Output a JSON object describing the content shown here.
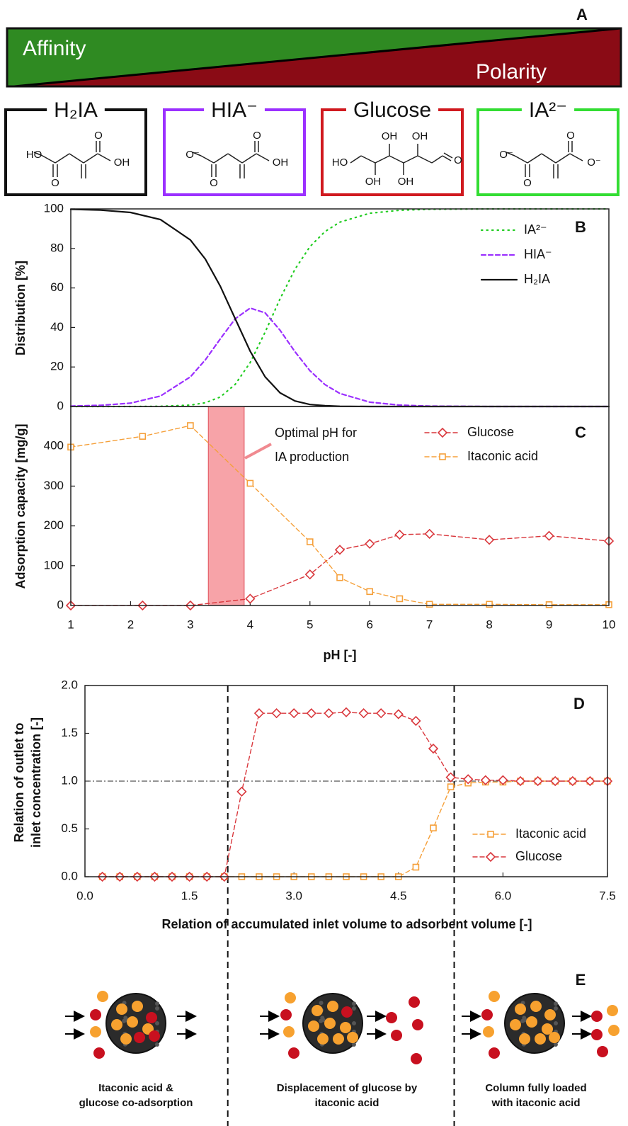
{
  "panel_a": {
    "label": "A",
    "gradient": [
      "Affinity",
      "Polarity"
    ],
    "species": [
      {
        "name": "H₂IA",
        "color": "#111111",
        "atoms": [
          "HO",
          "O",
          "O",
          "OH"
        ]
      },
      {
        "name": "HIA⁻",
        "color": "#9b30ff",
        "atoms": [
          "O⁻",
          "O",
          "O",
          "OH"
        ]
      },
      {
        "name": "Glucose",
        "color": "#d0191f",
        "atoms": [
          "HO",
          "OH",
          "OH",
          "OH",
          "OH",
          "O"
        ]
      },
      {
        "name": "IA²⁻",
        "color": "#33dd33",
        "atoms": [
          "O⁻",
          "O",
          "O",
          "O⁻"
        ]
      }
    ]
  },
  "chart_data": [
    {
      "type": "line",
      "label": "B",
      "ylabel": "Distribution [%]",
      "x": [
        1,
        1.5,
        2,
        2.5,
        3,
        3.25,
        3.5,
        3.75,
        4,
        4.25,
        4.5,
        4.75,
        5,
        5.25,
        5.5,
        6,
        6.5,
        7,
        8,
        9,
        10
      ],
      "series": [
        {
          "name": "IA²⁻",
          "color": "#22cc22",
          "style": "dotted",
          "values": [
            0,
            0,
            0,
            0.1,
            0.7,
            1.9,
            4.8,
            11.2,
            22.2,
            37.6,
            54.5,
            69.5,
            80.9,
            88.5,
            93.3,
            97.8,
            99.3,
            99.8,
            100,
            100,
            100
          ]
        },
        {
          "name": "HIA⁻",
          "color": "#9b30ff",
          "style": "dashed",
          "values": [
            0.2,
            0.6,
            1.7,
            5.3,
            15.0,
            23.6,
            34.2,
            44.4,
            49.8,
            47.4,
            38.6,
            27.7,
            18.1,
            11.1,
            6.6,
            2.2,
            0.7,
            0.2,
            0,
            0,
            0
          ]
        },
        {
          "name": "H₂IA",
          "color": "#111111",
          "style": "solid",
          "values": [
            99.8,
            99.4,
            98.2,
            94.6,
            84.3,
            74.6,
            60.9,
            44.4,
            28.0,
            15.0,
            6.9,
            2.8,
            1.0,
            0.4,
            0.1,
            0,
            0,
            0,
            0,
            0,
            0
          ]
        }
      ],
      "xlim": [
        1,
        10
      ],
      "ylim": [
        0,
        100
      ],
      "yticks": [
        0,
        20,
        40,
        60,
        80,
        100
      ],
      "legend": "upper right"
    },
    {
      "type": "line",
      "label": "C",
      "ylabel": "Adsorption capacity [mg/g]",
      "xlabel": "pH [-]",
      "x": [
        1,
        2.2,
        3,
        4,
        5,
        5.5,
        6,
        6.5,
        7,
        8,
        9,
        10
      ],
      "series": [
        {
          "name": "Glucose",
          "color": "#d9373c",
          "style": "dashed",
          "marker": "diamond",
          "values": [
            0,
            0,
            0,
            17,
            78,
            140,
            155,
            178,
            180,
            165,
            175,
            162
          ]
        },
        {
          "name": "Itaconic acid",
          "color": "#f5a03a",
          "style": "dashed",
          "marker": "square",
          "values": [
            398,
            425,
            452,
            307,
            160,
            70,
            35,
            17,
            3,
            3,
            2,
            2
          ]
        }
      ],
      "shaded_region": [
        3.3,
        3.9
      ],
      "annotation": [
        "Optimal pH for",
        "IA production"
      ],
      "xlim": [
        1,
        10
      ],
      "xticks": [
        1,
        2,
        3,
        4,
        5,
        6,
        7,
        8,
        9,
        10
      ],
      "ylim": [
        0,
        500
      ],
      "yticks": [
        0,
        100,
        200,
        300,
        400
      ],
      "legend": "upper right"
    },
    {
      "type": "line",
      "label": "D",
      "ylabel": [
        "Relation of outlet to",
        "inlet concentration [-]"
      ],
      "xlabel": "Relation of accumulated inlet volume to adsorbent volume [-]",
      "x": [
        0.25,
        0.5,
        0.75,
        1,
        1.25,
        1.5,
        1.75,
        2,
        2.25,
        2.5,
        2.75,
        3,
        3.25,
        3.5,
        3.75,
        4,
        4.25,
        4.5,
        4.75,
        5,
        5.25,
        5.5,
        5.75,
        6,
        6.25,
        6.5,
        6.75,
        7,
        7.25,
        7.5
      ],
      "series": [
        {
          "name": "Itaconic acid",
          "color": "#f5a03a",
          "style": "dashed",
          "marker": "square",
          "values": [
            0,
            0,
            0,
            0,
            0,
            0,
            0,
            0,
            0,
            0,
            0,
            0,
            0,
            0,
            0,
            0,
            0,
            0,
            0.1,
            0.51,
            0.94,
            0.98,
            0.99,
            0.99,
            1.0,
            1.0,
            1.0,
            1.0,
            1.0,
            1.0
          ]
        },
        {
          "name": "Glucose",
          "color": "#d9373c",
          "style": "dashed",
          "marker": "diamond",
          "values": [
            0,
            0,
            0,
            0,
            0,
            0,
            0,
            0,
            0.89,
            1.71,
            1.71,
            1.71,
            1.71,
            1.71,
            1.72,
            1.71,
            1.71,
            1.7,
            1.63,
            1.34,
            1.04,
            1.02,
            1.01,
            1.01,
            1.0,
            1.0,
            1.0,
            1.0,
            1.0,
            1.0
          ]
        }
      ],
      "vlines": [
        2.05,
        5.3
      ],
      "hline": 1,
      "xlim": [
        0,
        7.5
      ],
      "xticks": [
        {
          "value": 0,
          "label": "0.0"
        },
        {
          "value": 1.5,
          "label": "1.5"
        },
        {
          "value": 3,
          "label": "3.0"
        },
        {
          "value": 4.5,
          "label": "4.5"
        },
        {
          "value": 6,
          "label": "6.0"
        },
        {
          "value": 7.5,
          "label": "7.5"
        }
      ],
      "ylim": [
        0,
        2
      ],
      "yticks": [
        {
          "value": 0,
          "label": "0.0"
        },
        {
          "value": 0.5,
          "label": "0.5"
        },
        {
          "value": 1,
          "label": "1.0"
        },
        {
          "value": 1.5,
          "label": "1.5"
        },
        {
          "value": 2,
          "label": "2.0"
        }
      ],
      "legend": "lower right"
    }
  ],
  "panel_e": {
    "label": "E",
    "captions": [
      [
        "Itaconic acid &",
        "glucose co-adsorption"
      ],
      [
        "Displacement of glucose by",
        "itaconic acid"
      ],
      [
        "Column fully loaded",
        "with itaconic acid"
      ]
    ]
  }
}
